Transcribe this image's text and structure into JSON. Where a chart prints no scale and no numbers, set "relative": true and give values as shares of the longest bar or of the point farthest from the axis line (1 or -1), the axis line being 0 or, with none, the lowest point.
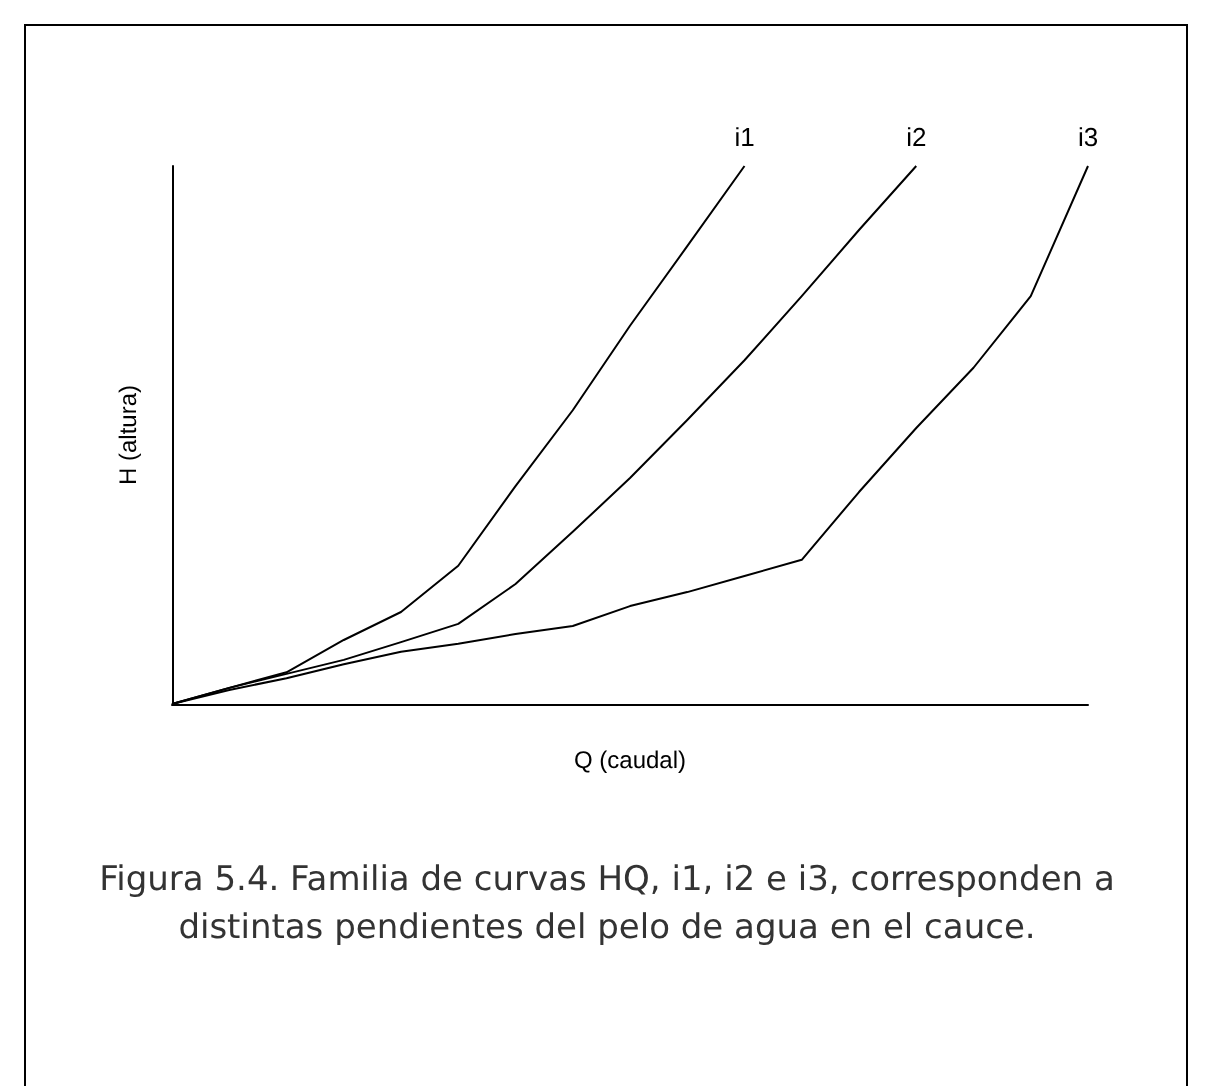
{
  "chart_data": {
    "type": "line",
    "relative": true,
    "xlabel": "Q (caudal)",
    "ylabel": "H (altura)",
    "categories": [
      null,
      null,
      null,
      null,
      null,
      null,
      null,
      null,
      null,
      null,
      null,
      null,
      null,
      null,
      null,
      null,
      null
    ],
    "series": [
      {
        "name": "i1",
        "color": "#000000",
        "values": [
          0,
          0.03,
          0.059,
          0.119,
          0.171,
          0.257,
          0.405,
          0.546,
          0.703,
          0.851,
          1,
          null,
          null,
          null,
          null,
          null,
          null
        ]
      },
      {
        "name": "i2",
        "color": "#000000",
        "values": [
          0,
          0.03,
          0.056,
          0.082,
          0.115,
          0.149,
          0.223,
          0.32,
          0.42,
          0.528,
          0.639,
          0.758,
          0.881,
          1,
          null,
          null,
          null
        ]
      },
      {
        "name": "i3",
        "color": "#000000",
        "values": [
          0,
          0.026,
          0.048,
          0.074,
          0.097,
          0.112,
          0.13,
          0.145,
          0.182,
          0.208,
          0.238,
          0.268,
          0.394,
          0.513,
          0.625,
          0.758,
          1
        ]
      }
    ],
    "annotations": [
      "Figura 5.4. Familia de curvas HQ, i1, i2 e i3, corresponden a distintas pendientes del pelo de agua en el cauce."
    ],
    "grid": false,
    "legend": false,
    "marker": "none"
  }
}
